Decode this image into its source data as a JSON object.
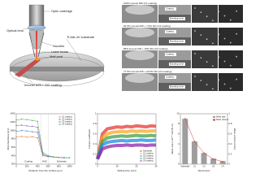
{
  "schematic": {
    "labels": [
      "Optic cartridge",
      "Optical lens",
      "Ti-6Al-4V substrate",
      "Nozzles",
      "Laser beam",
      "Melt pool",
      "Inconel 625 + SiC coating"
    ]
  },
  "micrographs": {
    "rows": [
      {
        "caption": "100% inconel 625 (C1 coating)",
        "labels": [
          "Coating",
          "Bonding zone"
        ]
      },
      {
        "caption": "92.5% inconel 625 + 7.5% SiC (C2 coating)",
        "labels": [
          "Coating",
          "Bonding zone"
        ]
      },
      {
        "caption": "85% inconel 625 + 15% SiC (C3 coating)",
        "labels": [
          "Coating",
          "Bonding zone"
        ]
      },
      {
        "caption": "77.5% inconel 625 + 22.5% SiC (C4 coating)",
        "labels": [
          "Coating",
          "Bonding zone"
        ]
      }
    ]
  },
  "chart_data": [
    {
      "type": "line",
      "xlabel": "Distance from the surface (µm)",
      "ylabel": "Microhardness (HV)",
      "regions": [
        "Coating",
        "HAZ",
        "Substrate"
      ],
      "x": [
        0,
        100,
        200,
        300,
        400,
        500,
        600,
        700,
        800,
        900,
        1000
      ],
      "series": [
        {
          "name": "C1 coating",
          "color": "#e07b39",
          "values": [
            850,
            860,
            840,
            850,
            830,
            400,
            380,
            370,
            360,
            350,
            350
          ]
        },
        {
          "name": "C2 coating",
          "color": "#4a7fc1",
          "values": [
            980,
            1000,
            990,
            970,
            960,
            420,
            380,
            370,
            360,
            355,
            350
          ]
        },
        {
          "name": "C3 coating",
          "color": "#8e5bb5",
          "values": [
            1120,
            1130,
            1110,
            1100,
            1080,
            450,
            390,
            370,
            360,
            350,
            350
          ]
        },
        {
          "name": "C4 coating",
          "color": "#4caf50",
          "values": [
            1250,
            1270,
            1260,
            1240,
            1220,
            480,
            400,
            375,
            360,
            355,
            350
          ]
        }
      ],
      "xlim": [
        0,
        1100
      ],
      "xticks": [
        0,
        200,
        400,
        600,
        800,
        1000
      ],
      "ylim": [
        200,
        1400
      ],
      "yticks": [
        200,
        400,
        600,
        800,
        1000,
        1200,
        1400
      ]
    },
    {
      "type": "line",
      "xlabel": "Sliding time (min)",
      "ylabel": "Friction coefficient",
      "x": [
        0,
        2.5,
        5,
        7.5,
        10,
        12.5,
        15,
        17.5,
        20,
        22.5,
        25,
        27.5,
        30
      ],
      "series": [
        {
          "name": "Substrate",
          "color": "#e53935",
          "values": [
            0.1,
            0.6,
            0.7,
            0.72,
            0.74,
            0.73,
            0.75,
            0.74,
            0.76,
            0.75,
            0.74,
            0.76,
            0.75
          ]
        },
        {
          "name": "C1 coating",
          "color": "#f9a825",
          "values": [
            0.1,
            0.52,
            0.6,
            0.63,
            0.64,
            0.65,
            0.64,
            0.66,
            0.65,
            0.66,
            0.65,
            0.66,
            0.66
          ]
        },
        {
          "name": "C2 coating",
          "color": "#43a047",
          "values": [
            0.1,
            0.45,
            0.52,
            0.54,
            0.55,
            0.56,
            0.55,
            0.56,
            0.57,
            0.56,
            0.56,
            0.57,
            0.56
          ]
        },
        {
          "name": "C3 coating",
          "color": "#1e88e5",
          "values": [
            0.1,
            0.38,
            0.43,
            0.45,
            0.46,
            0.47,
            0.46,
            0.47,
            0.47,
            0.48,
            0.47,
            0.47,
            0.48
          ]
        },
        {
          "name": "C4 coating",
          "color": "#8e24aa",
          "values": [
            0.1,
            0.3,
            0.34,
            0.36,
            0.37,
            0.37,
            0.38,
            0.37,
            0.38,
            0.38,
            0.37,
            0.38,
            0.38
          ]
        }
      ],
      "xlim": [
        0,
        30
      ],
      "xticks": [
        0,
        10,
        20,
        30
      ],
      "ylim": [
        0,
        1
      ],
      "yticks": [
        0,
        0.2,
        0.4,
        0.6,
        0.8,
        1
      ]
    },
    {
      "type": "bar",
      "xlabel": "Specimens",
      "ylabel": "Wear rate (×10⁻⁴ mm³/N·m)",
      "y2label": "Wear volume (mm³)",
      "categories": [
        "Substrate",
        "C1",
        "C2",
        "C3",
        "C4"
      ],
      "series": [
        {
          "name": "Wear rate",
          "color": "#9e9e9e",
          "values": [
            9,
            4.5,
            2.2,
            1.1,
            0.6
          ]
        },
        {
          "name": "Wear volume",
          "color": "#e53935",
          "axis": "y2",
          "values": [
            0.9,
            0.45,
            0.22,
            0.1,
            0.05
          ]
        }
      ],
      "ylim": [
        0,
        10
      ],
      "yticks": [
        0,
        2,
        4,
        6,
        8,
        10
      ],
      "y2lim": [
        0,
        1
      ],
      "y2ticks": [
        0,
        0.2,
        0.4,
        0.6,
        0.8,
        1
      ]
    }
  ]
}
